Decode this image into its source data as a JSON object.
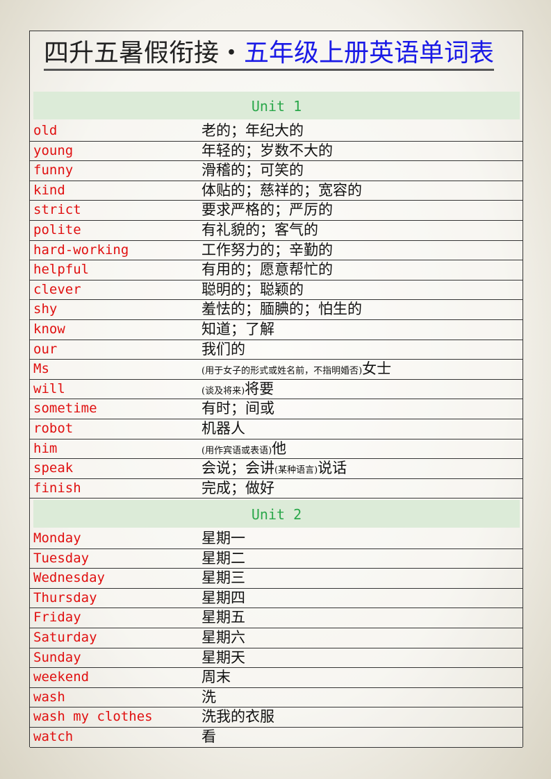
{
  "title": {
    "part1": "四升五暑假衔接・",
    "part2": "五年级上册英语单词表"
  },
  "units": [
    {
      "label": "Unit 1",
      "words": [
        {
          "en": "old",
          "zh": [
            {
              "t": "老的；年纪大的"
            }
          ]
        },
        {
          "en": "young",
          "zh": [
            {
              "t": "年轻的；岁数不大的"
            }
          ]
        },
        {
          "en": "funny",
          "zh": [
            {
              "t": "滑稽的；可笑的"
            }
          ]
        },
        {
          "en": "kind",
          "zh": [
            {
              "t": "体贴的；慈祥的；宽容的"
            }
          ]
        },
        {
          "en": "strict",
          "zh": [
            {
              "t": "要求严格的；严厉的"
            }
          ]
        },
        {
          "en": "polite",
          "zh": [
            {
              "t": "有礼貌的；客气的"
            }
          ]
        },
        {
          "en": "hard-working",
          "zh": [
            {
              "t": "工作努力的；辛勤的"
            }
          ]
        },
        {
          "en": "helpful",
          "zh": [
            {
              "t": "有用的；愿意帮忙的"
            }
          ]
        },
        {
          "en": "clever",
          "zh": [
            {
              "t": "聪明的；聪颖的"
            }
          ]
        },
        {
          "en": "shy",
          "zh": [
            {
              "t": "羞怯的；腼腆的；怕生的"
            }
          ]
        },
        {
          "en": "know",
          "zh": [
            {
              "t": "知道；了解"
            }
          ]
        },
        {
          "en": "our",
          "zh": [
            {
              "t": "我们的"
            }
          ]
        },
        {
          "en": "Ms",
          "zh": [
            {
              "t": "(用于女子的形式或姓名前，不指明婚否)",
              "small": true
            },
            {
              "t": "女士"
            }
          ]
        },
        {
          "en": "will",
          "zh": [
            {
              "t": "(谈及将来)",
              "small": true
            },
            {
              "t": "将要"
            }
          ]
        },
        {
          "en": "sometime",
          "zh": [
            {
              "t": "有时；间或"
            }
          ]
        },
        {
          "en": "robot",
          "zh": [
            {
              "t": "机器人"
            }
          ]
        },
        {
          "en": "him",
          "zh": [
            {
              "t": "(用作宾语或表语)",
              "small": true
            },
            {
              "t": "他"
            }
          ]
        },
        {
          "en": "speak",
          "zh": [
            {
              "t": "会说；会讲"
            },
            {
              "t": "(某种语言)",
              "small": true
            },
            {
              "t": "说话"
            }
          ]
        },
        {
          "en": "finish",
          "zh": [
            {
              "t": "完成；做好"
            }
          ]
        }
      ]
    },
    {
      "label": "Unit 2",
      "words": [
        {
          "en": "Monday",
          "zh": [
            {
              "t": "星期一"
            }
          ]
        },
        {
          "en": "Tuesday",
          "zh": [
            {
              "t": "星期二"
            }
          ]
        },
        {
          "en": "Wednesday",
          "zh": [
            {
              "t": "星期三"
            }
          ]
        },
        {
          "en": "Thursday",
          "zh": [
            {
              "t": "星期四"
            }
          ]
        },
        {
          "en": "Friday",
          "zh": [
            {
              "t": "星期五"
            }
          ]
        },
        {
          "en": "Saturday",
          "zh": [
            {
              "t": "星期六"
            }
          ]
        },
        {
          "en": "Sunday",
          "zh": [
            {
              "t": "星期天"
            }
          ]
        },
        {
          "en": "weekend",
          "zh": [
            {
              "t": "周末"
            }
          ]
        },
        {
          "en": "wash",
          "zh": [
            {
              "t": "洗"
            }
          ]
        },
        {
          "en": "wash my clothes",
          "zh": [
            {
              "t": "洗我的衣服"
            }
          ]
        },
        {
          "en": "watch",
          "zh": [
            {
              "t": "看"
            }
          ]
        }
      ]
    }
  ],
  "colors": {
    "english": "#e01010",
    "unit_text": "#2aa74a",
    "unit_bg": "#dcebd8",
    "title_accent": "#1a1ae6"
  }
}
